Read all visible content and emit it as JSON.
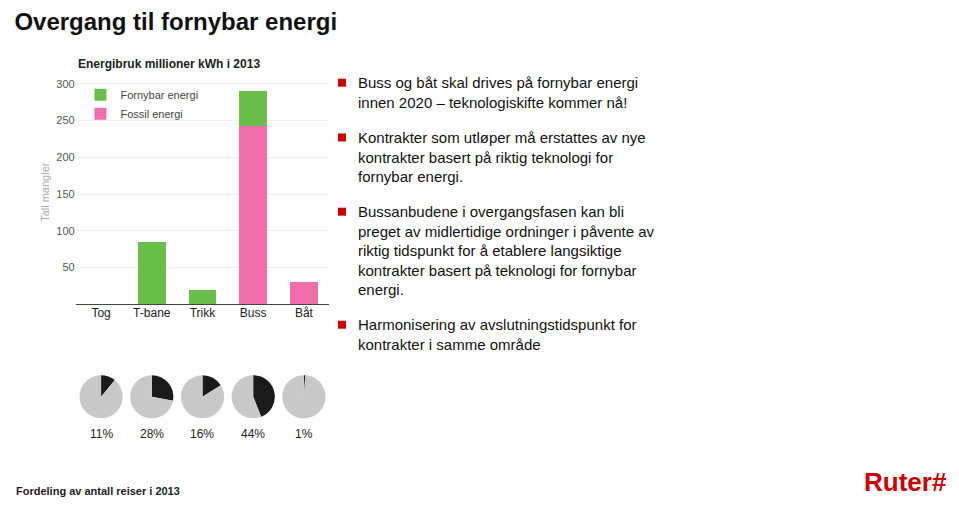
{
  "title": "Overgang til fornybar energi",
  "chart_data": [
    {
      "type": "bar",
      "title": "Energibruk millioner kWh i 2013",
      "ylabel": "Tall mangler",
      "categories": [
        "Tog",
        "T-bane",
        "Trikk",
        "Buss",
        "Båt"
      ],
      "series": [
        {
          "name": "Fossil energi",
          "color": "#f06eaa",
          "values": [
            0,
            0,
            0,
            243,
            30
          ]
        },
        {
          "name": "Fornybar energi",
          "color": "#6abf4b",
          "values": [
            0,
            85,
            20,
            47,
            0
          ]
        }
      ],
      "stacked": true,
      "ylim": [
        0,
        305
      ],
      "yticks": [
        {
          "value": 0,
          "label": null
        },
        50,
        100,
        150,
        200,
        250,
        300
      ],
      "grid": true,
      "legend": "upper left"
    },
    {
      "type": "pie",
      "values": [
        11,
        89
      ],
      "value_labels": [
        "11%",
        null
      ],
      "colors": [
        "#1a1a1a",
        "#c8c8c8"
      ]
    },
    {
      "type": "pie",
      "values": [
        28,
        72
      ],
      "value_labels": [
        "28%",
        null
      ],
      "colors": [
        "#1a1a1a",
        "#c8c8c8"
      ]
    },
    {
      "type": "pie",
      "values": [
        16,
        84
      ],
      "value_labels": [
        "16%",
        null
      ],
      "colors": [
        "#1a1a1a",
        "#c8c8c8"
      ]
    },
    {
      "type": "pie",
      "values": [
        44,
        56
      ],
      "value_labels": [
        "44%",
        null
      ],
      "colors": [
        "#1a1a1a",
        "#c8c8c8"
      ]
    },
    {
      "type": "pie",
      "values": [
        1,
        99
      ],
      "value_labels": [
        "1%",
        null
      ],
      "colors": [
        "#1a1a1a",
        "#c8c8c8"
      ]
    }
  ],
  "annotations": [
    {
      "text": "Buss og båt skal drives på fornybar energi\ninnen 2020 – teknologiskifte kommer nå!",
      "marker": "square",
      "color": "#cc0000"
    },
    {
      "text": "Kontrakter som utløper må erstattes av nye\nkontrakter basert på riktig teknologi for\nfornybar energi.",
      "marker": "square",
      "color": "#cc0000"
    },
    {
      "text": "Bussanbudene i overgangsfasen kan bli\npreget av midlertidige ordninger i påvente av\nriktig tidspunkt for å etablere langsiktige\nkontrakter basert på teknologi for fornybar\nenergi.",
      "marker": "square",
      "color": "#cc0000"
    },
    {
      "text": "Harmonisering av avslutningstidspunkt for\nkontrakter i samme område",
      "marker": "square",
      "color": "#cc0000"
    },
    {
      "text": "Fordeling av antall reiser i 2013"
    },
    {
      "text": "Ruter#",
      "color": "#cc0000"
    }
  ]
}
